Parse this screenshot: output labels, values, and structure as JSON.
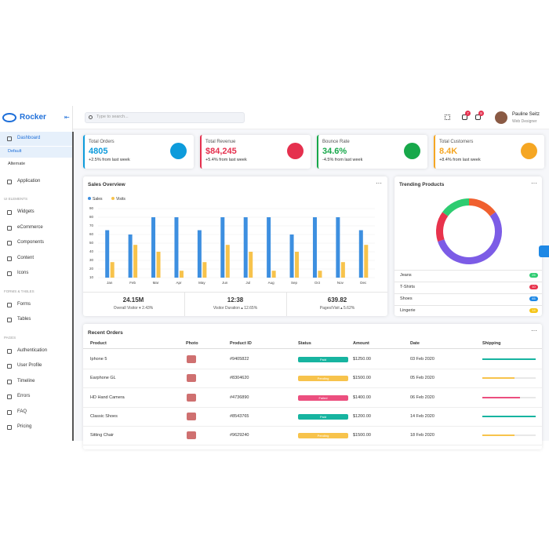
{
  "sidebar": {
    "brand": "Rocker",
    "sections": [
      {
        "items": [
          {
            "label": "Dashboard",
            "children": [
              "Default",
              "Alternate"
            ]
          },
          {
            "label": "Application"
          }
        ]
      },
      {
        "heading": "UI ELEMENTS",
        "items": [
          {
            "label": "Widgets"
          },
          {
            "label": "eCommerce"
          },
          {
            "label": "Components"
          },
          {
            "label": "Content"
          },
          {
            "label": "Icons"
          }
        ]
      },
      {
        "heading": "FORMS & TABLES",
        "items": [
          {
            "label": "Forms"
          },
          {
            "label": "Tables"
          }
        ]
      },
      {
        "heading": "PAGES",
        "items": [
          {
            "label": "Authentication"
          },
          {
            "label": "User Profile"
          },
          {
            "label": "Timeline"
          },
          {
            "label": "Errors"
          },
          {
            "label": "FAQ"
          },
          {
            "label": "Pricing"
          }
        ]
      }
    ]
  },
  "topbar": {
    "search_placeholder": "Type to search...",
    "badges": [
      "7",
      "8"
    ],
    "user_name": "Pauline Seitz",
    "user_role": "Web Designer"
  },
  "cards": [
    {
      "title": "Total Orders",
      "value": "4805",
      "change": "+2.5% from last week",
      "color": "#0d9bdb"
    },
    {
      "title": "Total Revenue",
      "value": "$84,245",
      "change": "+5.4% from last week",
      "color": "#e5304e"
    },
    {
      "title": "Bounce Rate",
      "value": "34.6%",
      "change": "-4.5% from last week",
      "color": "#17a84a"
    },
    {
      "title": "Total Customers",
      "value": "8.4K",
      "change": "+8.4% from last week",
      "color": "#f5a623"
    }
  ],
  "sales_overview": {
    "title": "Sales Overview",
    "stats": [
      {
        "value": "24.15M",
        "label": "Overall Visitor ▾ 2.43%"
      },
      {
        "value": "12:38",
        "label": "Visitor Duration ▴ 12.65%"
      },
      {
        "value": "639.82",
        "label": "Pages/Visit ▴ 5.62%"
      }
    ]
  },
  "trending": {
    "title": "Trending Products",
    "items": [
      {
        "name": "Jeans",
        "count": "25",
        "color": "#2ecc71"
      },
      {
        "name": "T-Shirts",
        "count": "10",
        "color": "#e8334c"
      },
      {
        "name": "Shoes",
        "count": "65",
        "color": "#1e88e5"
      },
      {
        "name": "Lingerie",
        "count": "14",
        "color": "#f5c518"
      }
    ]
  },
  "chart_data": [
    {
      "type": "bar",
      "categories": [
        "Jan",
        "Feb",
        "Mar",
        "Apr",
        "May",
        "Jun",
        "Jul",
        "Aug",
        "Sep",
        "Oct",
        "Nov",
        "Dec"
      ],
      "series": [
        {
          "name": "Sales",
          "color": "#3d8fe0",
          "values": [
            65,
            60,
            80,
            80,
            65,
            80,
            80,
            80,
            60,
            80,
            80,
            65
          ]
        },
        {
          "name": "Visits",
          "color": "#f7c34c",
          "values": [
            28,
            48,
            40,
            18,
            28,
            48,
            40,
            18,
            40,
            18,
            28,
            48
          ]
        }
      ],
      "ylim": [
        10,
        90
      ],
      "yticks": [
        10,
        20,
        30,
        40,
        50,
        60,
        70,
        80,
        90
      ],
      "grid": true,
      "legend": "top-left"
    },
    {
      "type": "pie",
      "values": [
        15,
        55,
        15,
        15
      ],
      "colors": [
        "#f0602f",
        "#7c5ce6",
        "#e8334c",
        "#2ecc71"
      ]
    }
  ],
  "orders": {
    "title": "Recent Orders",
    "columns": [
      "Product",
      "Photo",
      "Product ID",
      "Status",
      "Amount",
      "Date",
      "Shipping"
    ],
    "rows": [
      {
        "product": "Iphone 5",
        "id": "#9405822",
        "status": "Paid",
        "status_color": "#17b4a0",
        "amount": "$1250.00",
        "date": "03 Feb 2020",
        "shipping": 100
      },
      {
        "product": "Earphone GL",
        "id": "#8304620",
        "status": "Pending",
        "status_color": "#f7c34c",
        "amount": "$1500.00",
        "date": "05 Feb 2020",
        "shipping": 60
      },
      {
        "product": "HD Hand Camera",
        "id": "#4736890",
        "status": "Failed",
        "status_color": "#ec4f7f",
        "amount": "$1400.00",
        "date": "06 Feb 2020",
        "shipping": 70
      },
      {
        "product": "Classic Shoes",
        "id": "#8543765",
        "status": "Paid",
        "status_color": "#17b4a0",
        "amount": "$1200.00",
        "date": "14 Feb 2020",
        "shipping": 100
      },
      {
        "product": "Sitting Chair",
        "id": "#9629240",
        "status": "Pending",
        "status_color": "#f7c34c",
        "amount": "$1500.00",
        "date": "18 Feb 2020",
        "shipping": 60
      }
    ],
    "shipping_max": 100
  }
}
